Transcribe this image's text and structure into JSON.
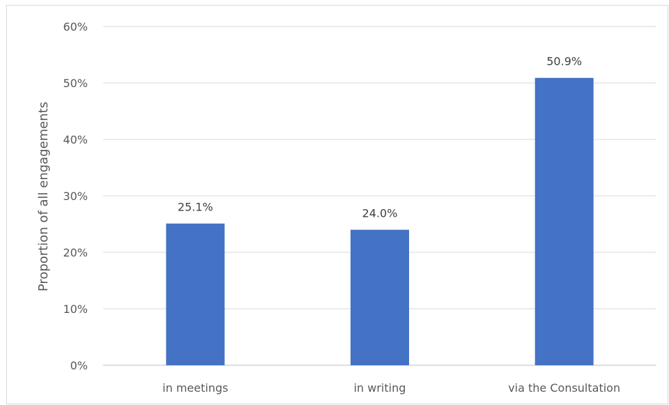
{
  "chart_data": {
    "type": "bar",
    "categories": [
      "in meetings",
      "in writing",
      "via the Consultation"
    ],
    "values": [
      25.1,
      24.0,
      50.9
    ],
    "data_labels": [
      "25.1%",
      "24.0%",
      "50.9%"
    ],
    "title": "",
    "xlabel": "",
    "ylabel": "Proportion of all engagements",
    "ylim": [
      0,
      60
    ],
    "yticks": [
      0,
      10,
      20,
      30,
      40,
      50,
      60
    ],
    "ytick_labels": [
      "0%",
      "10%",
      "20%",
      "30%",
      "40%",
      "50%",
      "60%"
    ],
    "grid": true,
    "legend": "none",
    "colors": {
      "bar": "#4472C4",
      "grid": "#d9d9d9",
      "axis": "#bfbfbf"
    }
  }
}
